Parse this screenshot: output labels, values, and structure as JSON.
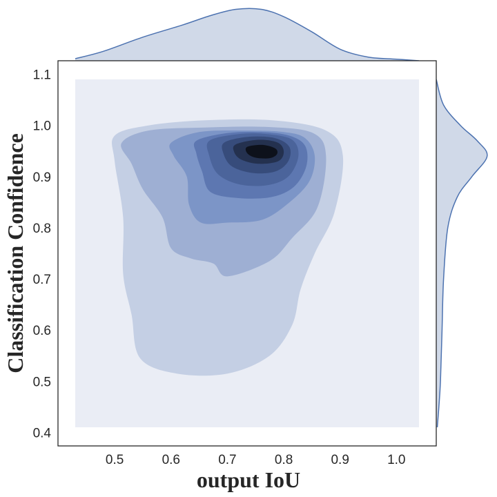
{
  "chart_data": {
    "type": "kde-joint",
    "xlabel": "output IoU",
    "ylabel": "Classification Confidence",
    "xlim": [
      0.43,
      1.04
    ],
    "ylim": [
      0.41,
      1.09
    ],
    "x_ticks": [
      0.5,
      0.6,
      0.7,
      0.8,
      0.9,
      1.0
    ],
    "x_tick_labels": [
      "0.5",
      "0.6",
      "0.7",
      "0.8",
      "0.9",
      "1.0"
    ],
    "y_ticks": [
      0.4,
      0.5,
      0.6,
      0.7,
      0.8,
      0.9,
      1.0,
      1.1
    ],
    "y_tick_labels": [
      "0.4",
      "0.5",
      "0.6",
      "0.7",
      "0.8",
      "0.9",
      "1.0",
      "1.1"
    ],
    "density_peak": {
      "x": 0.755,
      "y": 0.948
    },
    "levels": [
      {
        "color": "#c4cfe4",
        "points": [
          [
            0.5,
            0.98
          ],
          [
            0.56,
            1.0
          ],
          [
            0.66,
            1.01
          ],
          [
            0.78,
            1.01
          ],
          [
            0.875,
            0.99
          ],
          [
            0.905,
            0.94
          ],
          [
            0.89,
            0.83
          ],
          [
            0.855,
            0.75
          ],
          [
            0.83,
            0.68
          ],
          [
            0.815,
            0.61
          ],
          [
            0.775,
            0.55
          ],
          [
            0.7,
            0.515
          ],
          [
            0.61,
            0.515
          ],
          [
            0.545,
            0.545
          ],
          [
            0.53,
            0.63
          ],
          [
            0.515,
            0.71
          ],
          [
            0.515,
            0.82
          ],
          [
            0.5,
            0.93
          ]
        ]
      },
      {
        "color": "#9eafd3",
        "points": [
          [
            0.512,
            0.965
          ],
          [
            0.56,
            0.99
          ],
          [
            0.66,
            0.996
          ],
          [
            0.77,
            0.997
          ],
          [
            0.852,
            0.985
          ],
          [
            0.875,
            0.94
          ],
          [
            0.86,
            0.84
          ],
          [
            0.815,
            0.78
          ],
          [
            0.775,
            0.735
          ],
          [
            0.7,
            0.705
          ],
          [
            0.675,
            0.73
          ],
          [
            0.635,
            0.74
          ],
          [
            0.6,
            0.76
          ],
          [
            0.585,
            0.82
          ],
          [
            0.55,
            0.875
          ],
          [
            0.53,
            0.925
          ]
        ]
      },
      {
        "color": "#7c95c7",
        "points": [
          [
            0.6,
            0.966
          ],
          [
            0.65,
            0.987
          ],
          [
            0.73,
            0.99
          ],
          [
            0.8,
            0.987
          ],
          [
            0.838,
            0.975
          ],
          [
            0.855,
            0.94
          ],
          [
            0.845,
            0.89
          ],
          [
            0.805,
            0.845
          ],
          [
            0.76,
            0.815
          ],
          [
            0.7,
            0.81
          ],
          [
            0.653,
            0.81
          ],
          [
            0.632,
            0.845
          ],
          [
            0.628,
            0.9
          ],
          [
            0.605,
            0.94
          ]
        ]
      },
      {
        "color": "#5d77b1",
        "points": [
          [
            0.645,
            0.97
          ],
          [
            0.7,
            0.985
          ],
          [
            0.76,
            0.987
          ],
          [
            0.81,
            0.98
          ],
          [
            0.838,
            0.96
          ],
          [
            0.84,
            0.92
          ],
          [
            0.818,
            0.88
          ],
          [
            0.778,
            0.86
          ],
          [
            0.72,
            0.858
          ],
          [
            0.67,
            0.87
          ],
          [
            0.655,
            0.91
          ],
          [
            0.645,
            0.945
          ]
        ]
      },
      {
        "color": "#4b649b",
        "points": [
          [
            0.668,
            0.97
          ],
          [
            0.72,
            0.983
          ],
          [
            0.77,
            0.983
          ],
          [
            0.815,
            0.972
          ],
          [
            0.826,
            0.94
          ],
          [
            0.808,
            0.9
          ],
          [
            0.77,
            0.883
          ],
          [
            0.72,
            0.885
          ],
          [
            0.683,
            0.905
          ],
          [
            0.668,
            0.94
          ]
        ]
      },
      {
        "color": "#374c7b",
        "points": [
          [
            0.695,
            0.967
          ],
          [
            0.74,
            0.978
          ],
          [
            0.785,
            0.975
          ],
          [
            0.81,
            0.958
          ],
          [
            0.808,
            0.93
          ],
          [
            0.785,
            0.91
          ],
          [
            0.745,
            0.907
          ],
          [
            0.708,
            0.92
          ],
          [
            0.693,
            0.945
          ]
        ]
      },
      {
        "color": "#24314f",
        "points": [
          [
            0.715,
            0.963
          ],
          [
            0.755,
            0.972
          ],
          [
            0.79,
            0.966
          ],
          [
            0.8,
            0.948
          ],
          [
            0.79,
            0.93
          ],
          [
            0.755,
            0.925
          ],
          [
            0.725,
            0.933
          ],
          [
            0.712,
            0.948
          ]
        ]
      },
      {
        "color": "#0d111b",
        "points": [
          [
            0.735,
            0.958
          ],
          [
            0.762,
            0.962
          ],
          [
            0.785,
            0.955
          ],
          [
            0.788,
            0.944
          ],
          [
            0.775,
            0.936
          ],
          [
            0.75,
            0.937
          ],
          [
            0.735,
            0.946
          ]
        ]
      }
    ],
    "marginal_x": {
      "color": "#d0d9e8",
      "line_color": "#4c72b0",
      "points": [
        [
          0.43,
          0.04
        ],
        [
          0.48,
          0.18
        ],
        [
          0.55,
          0.45
        ],
        [
          0.62,
          0.68
        ],
        [
          0.67,
          0.86
        ],
        [
          0.715,
          0.98
        ],
        [
          0.76,
          0.98
        ],
        [
          0.8,
          0.84
        ],
        [
          0.85,
          0.55
        ],
        [
          0.9,
          0.22
        ],
        [
          0.95,
          0.07
        ],
        [
          1.0,
          0.03
        ],
        [
          1.04,
          0.0
        ]
      ]
    },
    "marginal_y": {
      "color": "#d0d9e8",
      "line_color": "#4c72b0",
      "points": [
        [
          0.41,
          0.02
        ],
        [
          0.45,
          0.05
        ],
        [
          0.5,
          0.08
        ],
        [
          0.6,
          0.11
        ],
        [
          0.7,
          0.14
        ],
        [
          0.8,
          0.22
        ],
        [
          0.86,
          0.4
        ],
        [
          0.9,
          0.68
        ],
        [
          0.94,
          0.97
        ],
        [
          0.97,
          0.78
        ],
        [
          1.0,
          0.46
        ],
        [
          1.04,
          0.14
        ],
        [
          1.09,
          0.0
        ]
      ]
    }
  }
}
